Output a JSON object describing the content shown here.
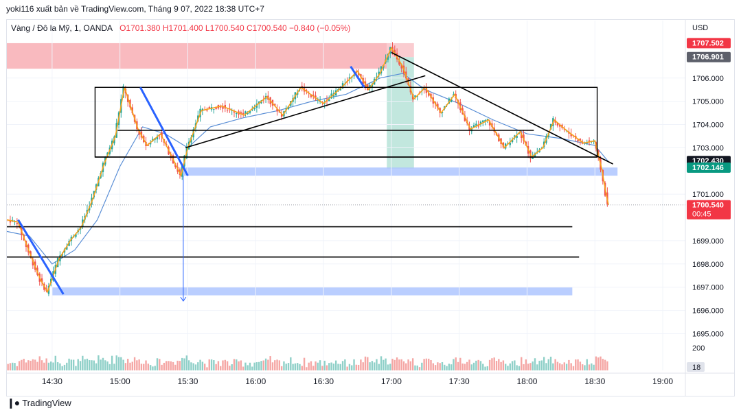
{
  "header": {
    "published": "yoki116 xuất bản về TradingView.com, Tháng 9 07, 2022 18:38 UTC+7"
  },
  "symbol": {
    "name": "Vàng / Đô la Mỹ, 1, OANDA",
    "open": "O1701.380",
    "high": "H1701.400",
    "low": "L1700.540",
    "close": "C1700.540",
    "change": "−0.840 (−0.05%)"
  },
  "footer": {
    "logo": "TradingView"
  },
  "colors": {
    "up": "#26a69a",
    "down": "#ef5350",
    "orange": "#f7a21b",
    "ma": "#5b8fd6",
    "zone": "#aec6ff",
    "red_zone": "#f8aeb4"
  },
  "chart_data": {
    "type": "candlestick",
    "currency": "USD",
    "x_ticks": [
      "14:30",
      "15:00",
      "15:30",
      "16:00",
      "16:30",
      "17:00",
      "17:30",
      "18:00",
      "18:30",
      "19:00"
    ],
    "y_ticks": [
      1706.0,
      1705.0,
      1704.0,
      1703.0,
      1701.0,
      1699.0,
      1698.0,
      1697.0,
      1696.0,
      1695.0
    ],
    "ylim": [
      1694.6,
      1708.0
    ],
    "xlim": [
      "14:10",
      "19:10"
    ],
    "price_labels": [
      {
        "value": 1707.502,
        "text": "1707.502",
        "style": "red"
      },
      {
        "value": 1706.901,
        "text": "1706.901",
        "style": "gray"
      },
      {
        "value": 1702.43,
        "text": "1702.430",
        "style": "dark"
      },
      {
        "value": 1702.146,
        "text": "1702.146",
        "style": "green"
      },
      {
        "value": 1700.54,
        "text": "1700.540",
        "sub": "00:45",
        "style": "red"
      }
    ],
    "volume": {
      "label": "200",
      "last": "18"
    },
    "price_path": [
      [
        "14:10",
        1699.9
      ],
      [
        "14:15",
        1699.8
      ],
      [
        "14:20",
        1698.5
      ],
      [
        "14:25",
        1697.3
      ],
      [
        "14:28",
        1696.8
      ],
      [
        "14:33",
        1698.2
      ],
      [
        "14:38",
        1699.0
      ],
      [
        "14:43",
        1699.6
      ],
      [
        "14:48",
        1700.8
      ],
      [
        "14:53",
        1702.3
      ],
      [
        "14:58",
        1703.5
      ],
      [
        "15:02",
        1705.6
      ],
      [
        "15:08",
        1703.8
      ],
      [
        "15:12",
        1703.1
      ],
      [
        "15:18",
        1703.6
      ],
      [
        "15:25",
        1702.2
      ],
      [
        "15:27",
        1701.8
      ],
      [
        "15:30",
        1703.0
      ],
      [
        "15:36",
        1704.6
      ],
      [
        "15:45",
        1704.8
      ],
      [
        "15:55",
        1704.4
      ],
      [
        "16:05",
        1705.2
      ],
      [
        "16:12",
        1704.4
      ],
      [
        "16:20",
        1705.6
      ],
      [
        "16:30",
        1704.9
      ],
      [
        "16:38",
        1705.6
      ],
      [
        "16:45",
        1706.3
      ],
      [
        "16:50",
        1705.5
      ],
      [
        "16:55",
        1706.2
      ],
      [
        "17:00",
        1707.3
      ],
      [
        "17:05",
        1706.5
      ],
      [
        "17:10",
        1705.1
      ],
      [
        "17:15",
        1705.6
      ],
      [
        "17:22",
        1704.5
      ],
      [
        "17:28",
        1705.3
      ],
      [
        "17:35",
        1703.8
      ],
      [
        "17:43",
        1704.2
      ],
      [
        "17:50",
        1703.0
      ],
      [
        "17:57",
        1703.7
      ],
      [
        "18:02",
        1702.6
      ],
      [
        "18:07",
        1703.0
      ],
      [
        "18:12",
        1704.2
      ],
      [
        "18:18",
        1703.7
      ],
      [
        "18:25",
        1703.2
      ],
      [
        "18:30",
        1703.3
      ],
      [
        "18:33",
        1702.1
      ],
      [
        "18:35",
        1701.0
      ],
      [
        "18:36",
        1700.54
      ]
    ],
    "ma_path": [
      [
        "14:10",
        1699.4
      ],
      [
        "14:20",
        1699.2
      ],
      [
        "14:30",
        1698.0
      ],
      [
        "14:40",
        1698.6
      ],
      [
        "14:50",
        1699.9
      ],
      [
        "15:00",
        1702.2
      ],
      [
        "15:10",
        1703.9
      ],
      [
        "15:20",
        1703.6
      ],
      [
        "15:30",
        1703.0
      ],
      [
        "15:40",
        1703.9
      ],
      [
        "15:55",
        1704.3
      ],
      [
        "16:10",
        1704.6
      ],
      [
        "16:25",
        1705.0
      ],
      [
        "16:40",
        1705.3
      ],
      [
        "16:55",
        1706.0
      ],
      [
        "17:05",
        1706.2
      ],
      [
        "17:15",
        1705.5
      ],
      [
        "17:30",
        1704.9
      ],
      [
        "17:45",
        1704.2
      ],
      [
        "18:00",
        1703.6
      ],
      [
        "18:15",
        1703.4
      ],
      [
        "18:30",
        1703.1
      ],
      [
        "18:36",
        1702.4
      ]
    ],
    "drawings": {
      "rectangle": {
        "x1": "14:49",
        "x2": "18:31",
        "y1": 1702.6,
        "y2": 1705.6
      },
      "red_zone": {
        "x1": "14:10",
        "x2": "16:58",
        "y1": 1706.4,
        "y2": 1707.5
      },
      "long_position": {
        "x1": "16:58",
        "x2": "17:10",
        "entry": 1706.9,
        "stop": 1707.5,
        "target": 1702.1
      },
      "blue_zones": [
        {
          "x1": "15:27",
          "x2": "18:40",
          "y1": 1701.8,
          "y2": 1702.15
        },
        {
          "x1": "14:30",
          "x2": "18:20",
          "y1": 1696.65,
          "y2": 1697.0
        }
      ],
      "hlines": [
        {
          "x1": "14:10",
          "x2": "18:20",
          "y": 1699.6
        },
        {
          "x1": "14:10",
          "x2": "18:23",
          "y": 1698.3
        },
        {
          "x1": "14:59",
          "x2": "18:03",
          "y": 1703.75
        },
        {
          "x1": "14:49",
          "x2": "18:31",
          "y": 1702.6
        }
      ],
      "trendlines": [
        {
          "x1": "15:29",
          "y1": 1703.0,
          "x2": "17:15",
          "y2": 1706.1
        },
        {
          "x1": "17:00",
          "y1": 1707.1,
          "x2": "18:38",
          "y2": 1702.3
        }
      ],
      "blue_lines": [
        {
          "x1": "14:15",
          "y1": 1699.9,
          "x2": "14:35",
          "y2": 1696.7
        },
        {
          "x1": "15:09",
          "y1": 1705.6,
          "x2": "15:30",
          "y2": 1701.8
        },
        {
          "x1": "16:42",
          "y1": 1706.5,
          "x2": "16:48",
          "y2": 1705.6
        }
      ],
      "arrow": {
        "x": "15:28",
        "y1": 1701.8,
        "y2": 1696.4
      }
    }
  }
}
